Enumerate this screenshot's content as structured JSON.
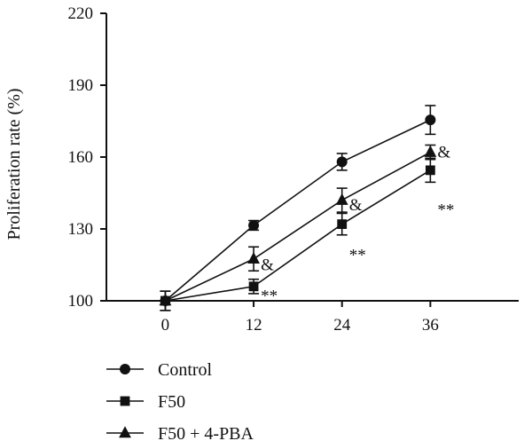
{
  "chart_data": {
    "type": "line",
    "title": "",
    "xlabel": "",
    "ylabel": "Proliferation rate (%)",
    "x": [
      0,
      12,
      24,
      36
    ],
    "xlim": [
      -8,
      48
    ],
    "ylim": [
      100,
      220
    ],
    "yticks": [
      100,
      130,
      160,
      190,
      220
    ],
    "xticks": [
      0,
      12,
      24,
      36
    ],
    "grid": false,
    "legend_position": "bottom-left",
    "series": [
      {
        "name": "Control",
        "marker": "circle",
        "values": [
          100,
          131.5,
          158,
          175.5
        ],
        "errors": [
          4,
          2,
          3.5,
          6
        ]
      },
      {
        "name": "F50",
        "marker": "square",
        "values": [
          100,
          106,
          132,
          154.5
        ],
        "errors": [
          4,
          3,
          4.5,
          5
        ]
      },
      {
        "name": "F50 + 4-PBA",
        "marker": "triangle",
        "values": [
          100,
          117.5,
          142,
          162
        ],
        "errors": [
          4,
          5,
          5,
          3
        ]
      }
    ],
    "annotations": [
      {
        "text": "&",
        "x": 12,
        "y": 115
      },
      {
        "text": "**",
        "x": 12,
        "y": 102
      },
      {
        "text": "&",
        "x": 24,
        "y": 140
      },
      {
        "text": "**",
        "x": 24,
        "y": 119
      },
      {
        "text": "&",
        "x": 36,
        "y": 162
      },
      {
        "text": "**",
        "x": 36,
        "y": 138
      }
    ]
  }
}
